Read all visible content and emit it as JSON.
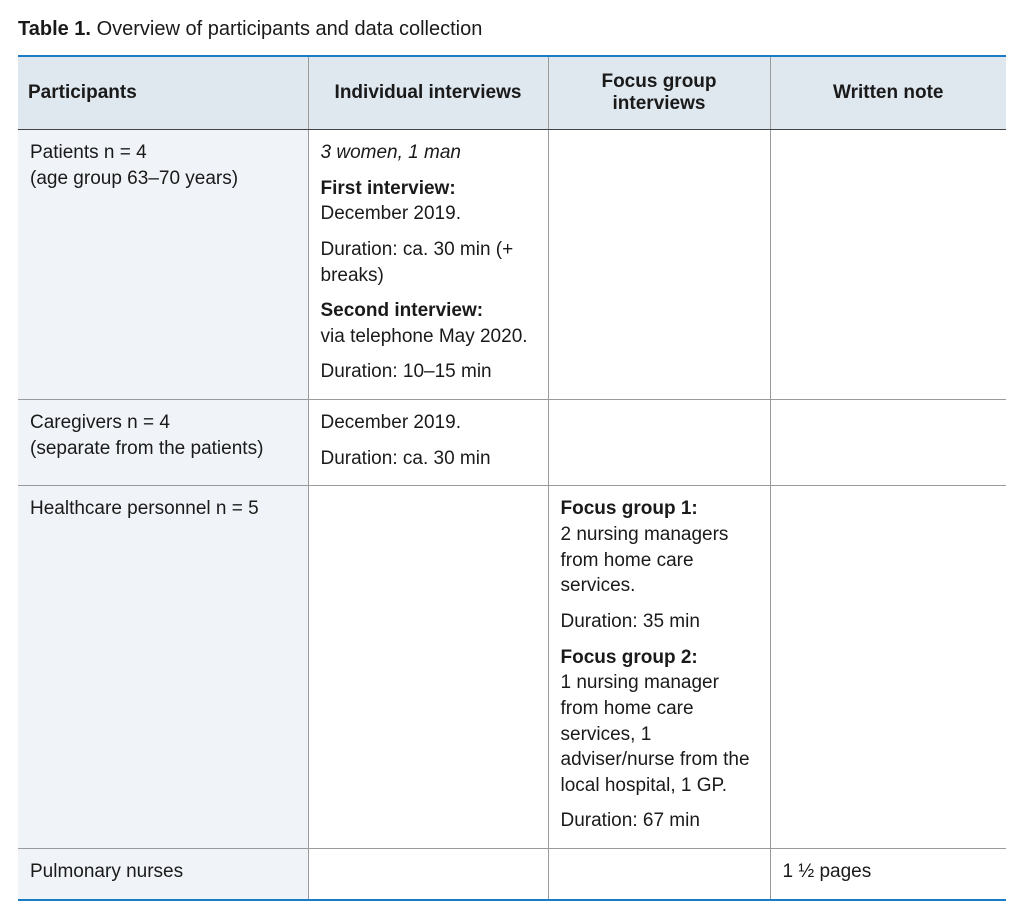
{
  "caption": {
    "label": "Table 1.",
    "text": "Overview of participants and data collection"
  },
  "columns": [
    "Participants",
    "Individual interviews",
    "Focus group interviews",
    "Written note"
  ],
  "rows": {
    "patients": {
      "participants_l1": "Patients n = 4",
      "participants_l2": "(age group 63–70 years)",
      "demographics": "3 women, 1 man",
      "int1_label": "First interview:",
      "int1_date": "December 2019.",
      "int1_dur": "Duration: ca. 30 min (+ breaks)",
      "int2_label": "Second interview:",
      "int2_date": "via telephone May 2020.",
      "int2_dur": "Duration: 10–15 min"
    },
    "caregivers": {
      "participants_l1": "Caregivers n = 4",
      "participants_l2": "(separate from the patients)",
      "date": "December 2019.",
      "dur": "Duration: ca. 30 min"
    },
    "hcp": {
      "participants": "Healthcare personnel n = 5",
      "fg1_label": "Focus group 1:",
      "fg1_desc": "2 nursing managers from home care services.",
      "fg1_dur": "Duration: 35 min",
      "fg2_label": "Focus group 2:",
      "fg2_desc": "1 nursing manager from home care services, 1 adviser/nurse from the local hospital, 1 GP.",
      "fg2_dur": "Duration: 67 min"
    },
    "pulm": {
      "participants": "Pulmonary nurses",
      "note": "1 ½ pages"
    }
  },
  "colors": {
    "rule": "#1a7cc4",
    "header_bg": "#dfe7ef",
    "col0_bg": "#f0f3f7",
    "border": "#9a9a9a"
  }
}
